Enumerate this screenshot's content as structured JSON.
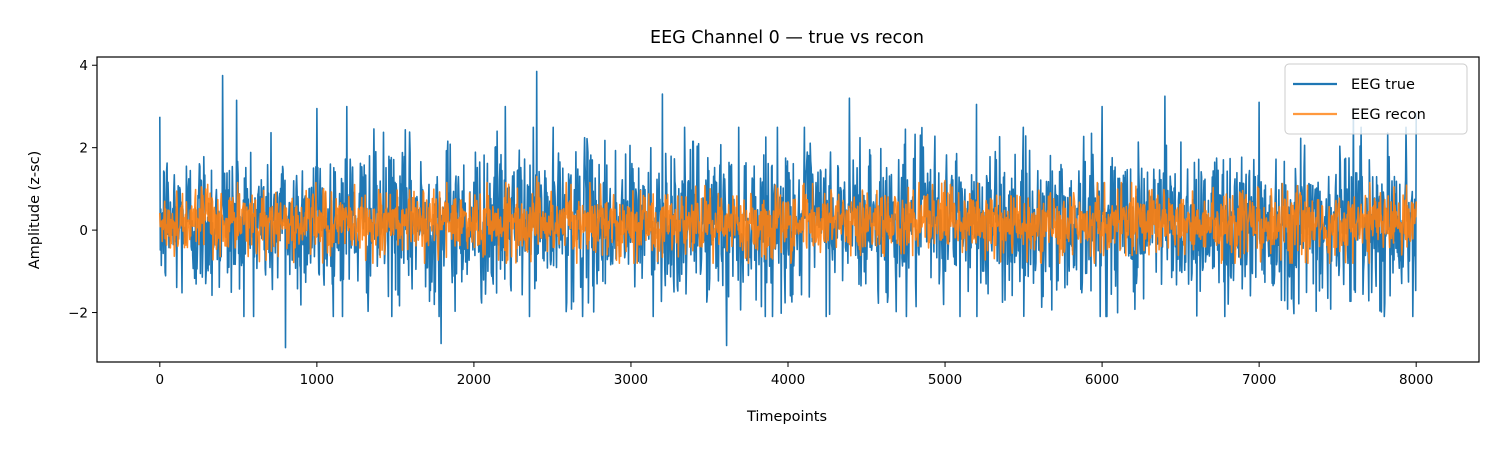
{
  "chart_data": {
    "type": "line",
    "title": "EEG Channel 0 — true vs recon",
    "xlabel": "Timepoints",
    "ylabel": "Amplitude (z-sc)",
    "xlim": [
      -400,
      8400
    ],
    "ylim": [
      -3.2,
      4.2
    ],
    "xticks": [
      0,
      1000,
      2000,
      3000,
      4000,
      5000,
      6000,
      7000,
      8000
    ],
    "yticks": [
      -2,
      0,
      2,
      4
    ],
    "ytick_labels": [
      "−2",
      "0",
      "2",
      "4"
    ],
    "grid": false,
    "legend_position": "top-right",
    "x_range": [
      0,
      8000
    ],
    "series": [
      {
        "name": "EEG true",
        "color": "#1f77b4",
        "envelope": {
          "upper_typical": 1.9,
          "lower_typical": -1.5
        },
        "peaks": [
          {
            "x": 0,
            "y": 2.75
          },
          {
            "x": 400,
            "y": 3.75
          },
          {
            "x": 490,
            "y": 3.15
          },
          {
            "x": 800,
            "y": -2.85
          },
          {
            "x": 1000,
            "y": 2.95
          },
          {
            "x": 1190,
            "y": 3.0
          },
          {
            "x": 1790,
            "y": -2.75
          },
          {
            "x": 2200,
            "y": 3.0
          },
          {
            "x": 2400,
            "y": 3.85
          },
          {
            "x": 3200,
            "y": 3.3
          },
          {
            "x": 3610,
            "y": -2.8
          },
          {
            "x": 4390,
            "y": 3.2
          },
          {
            "x": 5200,
            "y": 3.05
          },
          {
            "x": 6000,
            "y": 3.0
          },
          {
            "x": 6400,
            "y": 3.25
          },
          {
            "x": 7000,
            "y": 3.1
          },
          {
            "x": 7600,
            "y": 2.95
          },
          {
            "x": 8000,
            "y": 2.85
          }
        ]
      },
      {
        "name": "EEG recon",
        "color": "#ff7f0e",
        "envelope": {
          "upper_typical": 0.9,
          "lower_typical": -0.55
        },
        "peaks": [
          {
            "x": 2400,
            "y": 1.3
          },
          {
            "x": 5000,
            "y": 1.2
          }
        ]
      }
    ]
  }
}
